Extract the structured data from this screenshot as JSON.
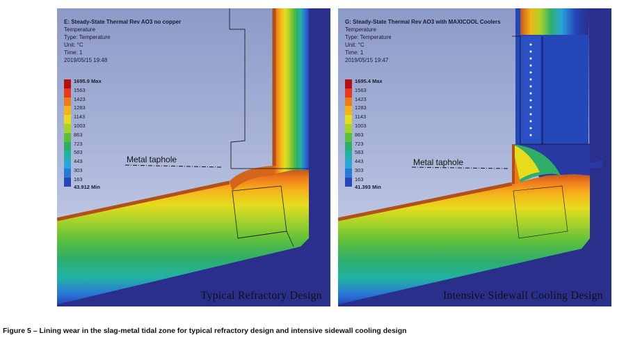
{
  "legend_colors": [
    "#b50f14",
    "#e53b1c",
    "#ef7a1c",
    "#f5b21a",
    "#e6dc1e",
    "#a6d22a",
    "#5cbf3c",
    "#2fae6a",
    "#22b2a4",
    "#2aa6d8",
    "#2a78d8",
    "#2448b8"
  ],
  "panels": [
    {
      "title": "E: Steady-State Thermal  Rev AO3 no copper",
      "lines": [
        "Temperature",
        "Type: Temperature",
        "Unit: °C",
        "Time: 1",
        "2019/05/15 19:48"
      ],
      "legend": [
        "1695.9 Max",
        "1563",
        "1423",
        "1283",
        "1143",
        "1003",
        "863",
        "723",
        "583",
        "443",
        "303",
        "163",
        "43.912 Min"
      ],
      "annotation": "Metal taphole",
      "design_label": "Typical Refractory Design"
    },
    {
      "title": "G: Steady-State Thermal  Rev AO3 with MAXICOOL Coolers",
      "lines": [
        "Temperature",
        "Type: Temperature",
        "Unit: °C",
        "Time: 1",
        "2019/05/15 19:47"
      ],
      "legend": [
        "1695.4 Max",
        "1563",
        "1423",
        "1283",
        "1143",
        "1003",
        "863",
        "723",
        "583",
        "443",
        "303",
        "163",
        "41.393 Min"
      ],
      "annotation": "Metal taphole",
      "design_label": "Intensive Sidewall Cooling Design"
    }
  ],
  "caption": "Figure 5 – Lining wear in the slag-metal tidal zone for typical refractory design and intensive sidewall cooling design"
}
